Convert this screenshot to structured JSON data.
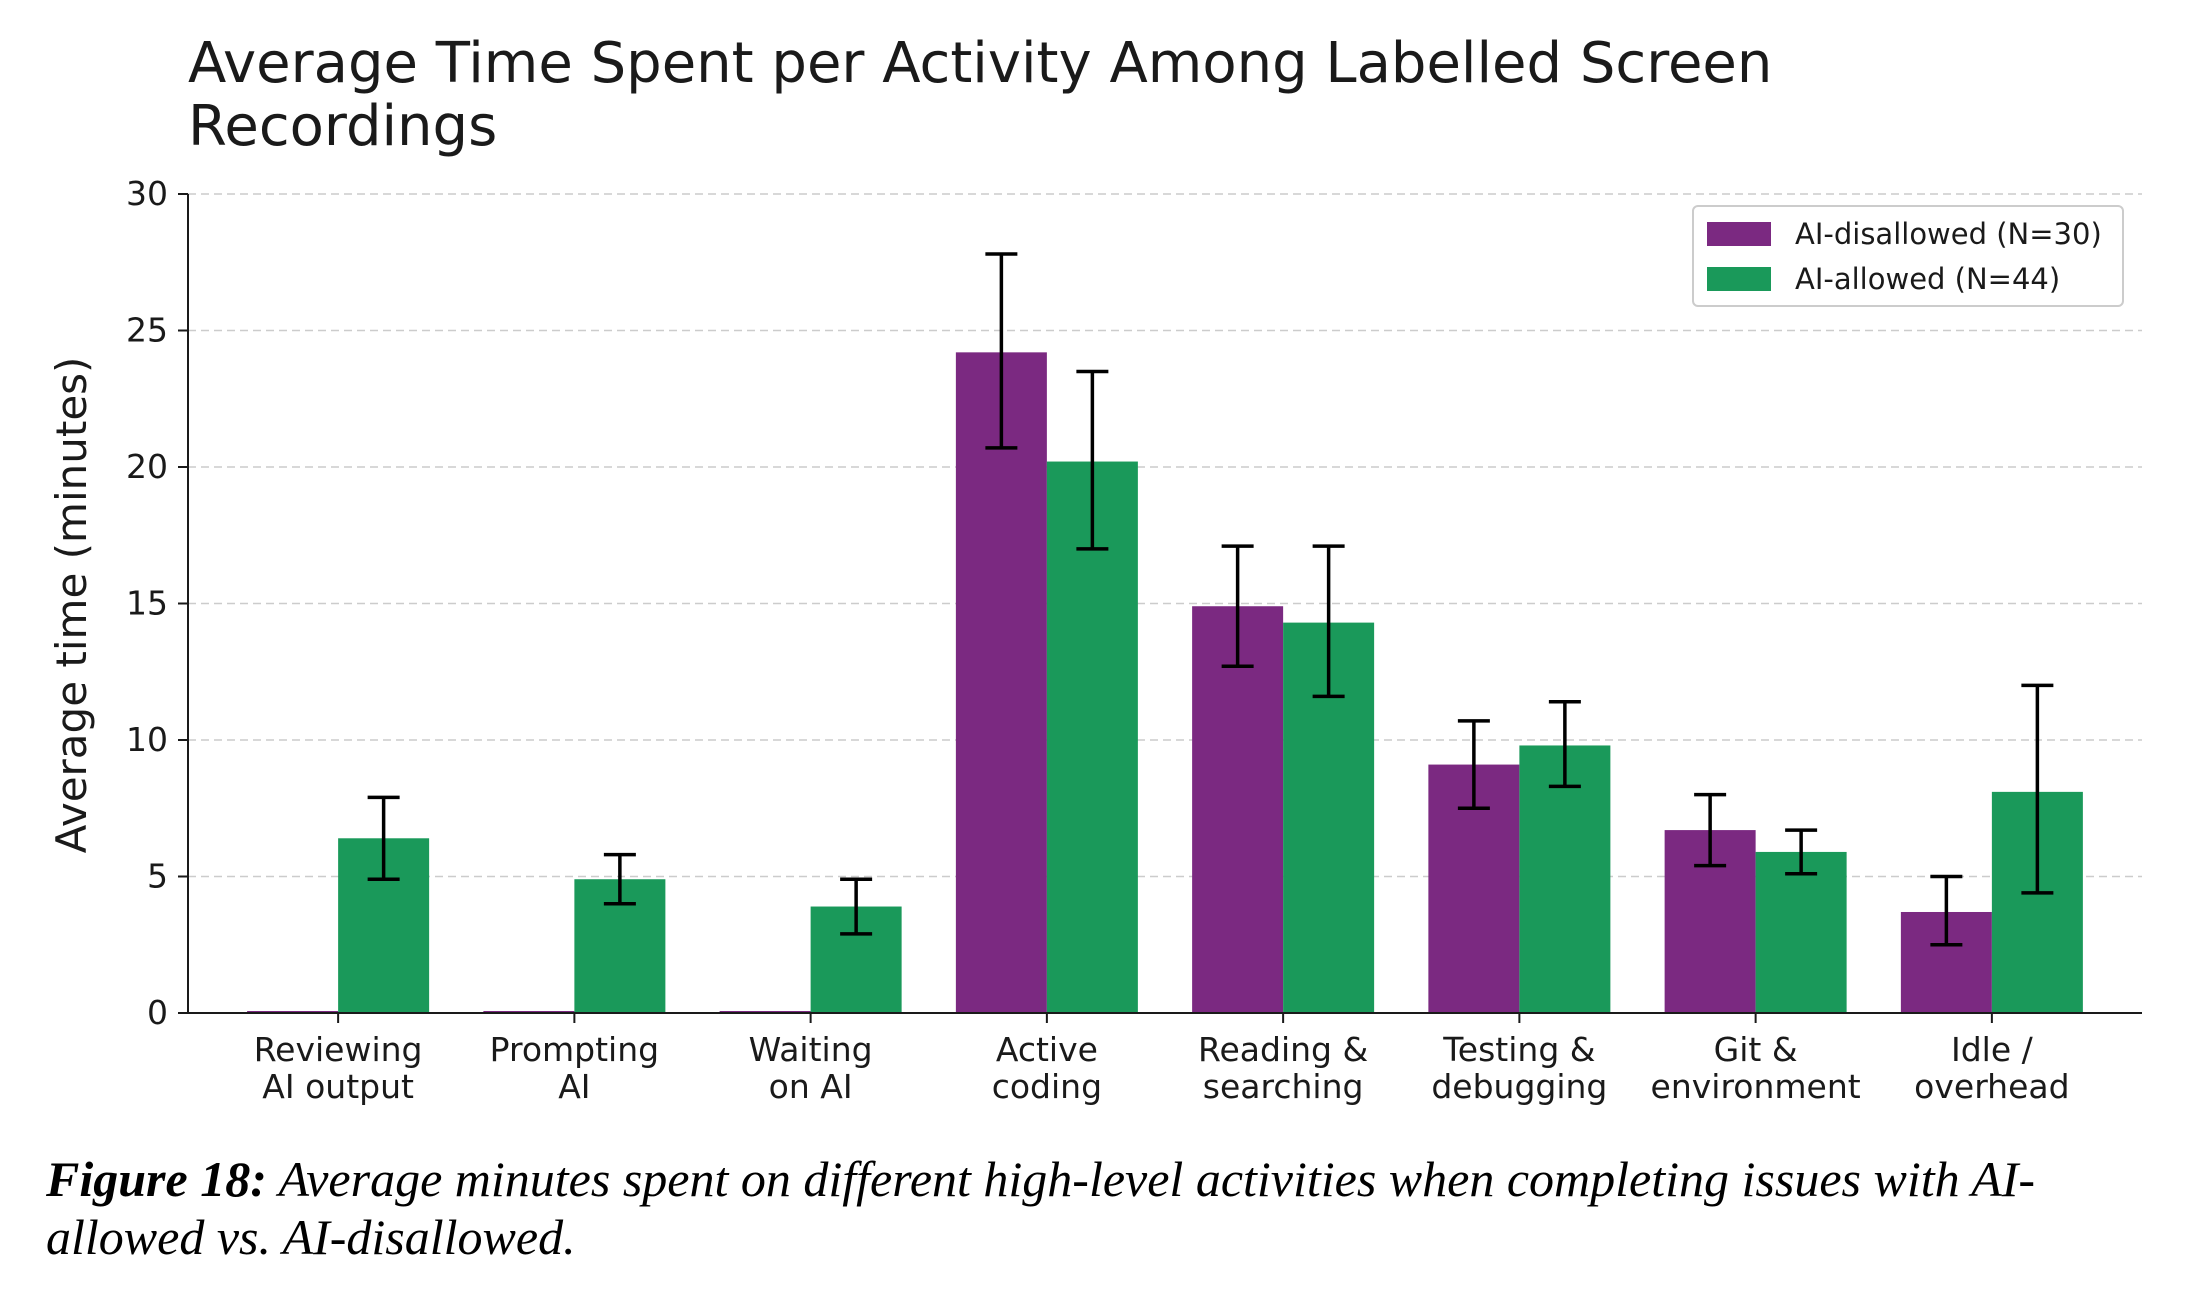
{
  "chart_data": {
    "type": "bar",
    "title": "Average Time Spent per Activity Among Labelled Screen Recordings",
    "title_lines": [
      "Average Time Spent per Activity Among Labelled Screen",
      "Recordings"
    ],
    "xlabel": "",
    "ylabel": "Average time (minutes)",
    "ylim": [
      0,
      30
    ],
    "yticks": [
      0,
      5,
      10,
      15,
      20,
      25,
      30
    ],
    "grid": "y-dashed",
    "legend_position": "top-right",
    "categories": [
      [
        "Reviewing",
        "AI output"
      ],
      [
        "Prompting",
        "AI"
      ],
      [
        "Waiting",
        "on AI"
      ],
      [
        "Active",
        "coding"
      ],
      [
        "Reading &",
        "searching"
      ],
      [
        "Testing &",
        "debugging"
      ],
      [
        "Git &",
        "environment"
      ],
      [
        "Idle /",
        "overhead"
      ]
    ],
    "series": [
      {
        "name": "AI-disallowed (N=30)",
        "color": "#7B2981",
        "values": [
          0,
          0,
          0,
          24.2,
          14.9,
          9.1,
          6.7,
          3.7
        ],
        "err_low": [
          null,
          null,
          null,
          20.7,
          12.7,
          7.5,
          5.4,
          2.5
        ],
        "err_high": [
          null,
          null,
          null,
          27.8,
          17.1,
          10.7,
          8.0,
          5.0
        ]
      },
      {
        "name": "AI-allowed (N=44)",
        "color": "#1A995A",
        "values": [
          6.4,
          4.9,
          3.9,
          20.2,
          14.3,
          9.8,
          5.9,
          8.1
        ],
        "err_low": [
          4.9,
          4.0,
          2.9,
          17.0,
          11.6,
          8.3,
          5.1,
          4.4
        ],
        "err_high": [
          7.9,
          5.8,
          4.9,
          23.5,
          17.1,
          11.4,
          6.7,
          12.0
        ]
      }
    ]
  },
  "caption": {
    "label": "Figure 18:",
    "text": " Average minutes spent on different high-level activities when completing issues with AI-allowed vs. AI-disallowed."
  }
}
